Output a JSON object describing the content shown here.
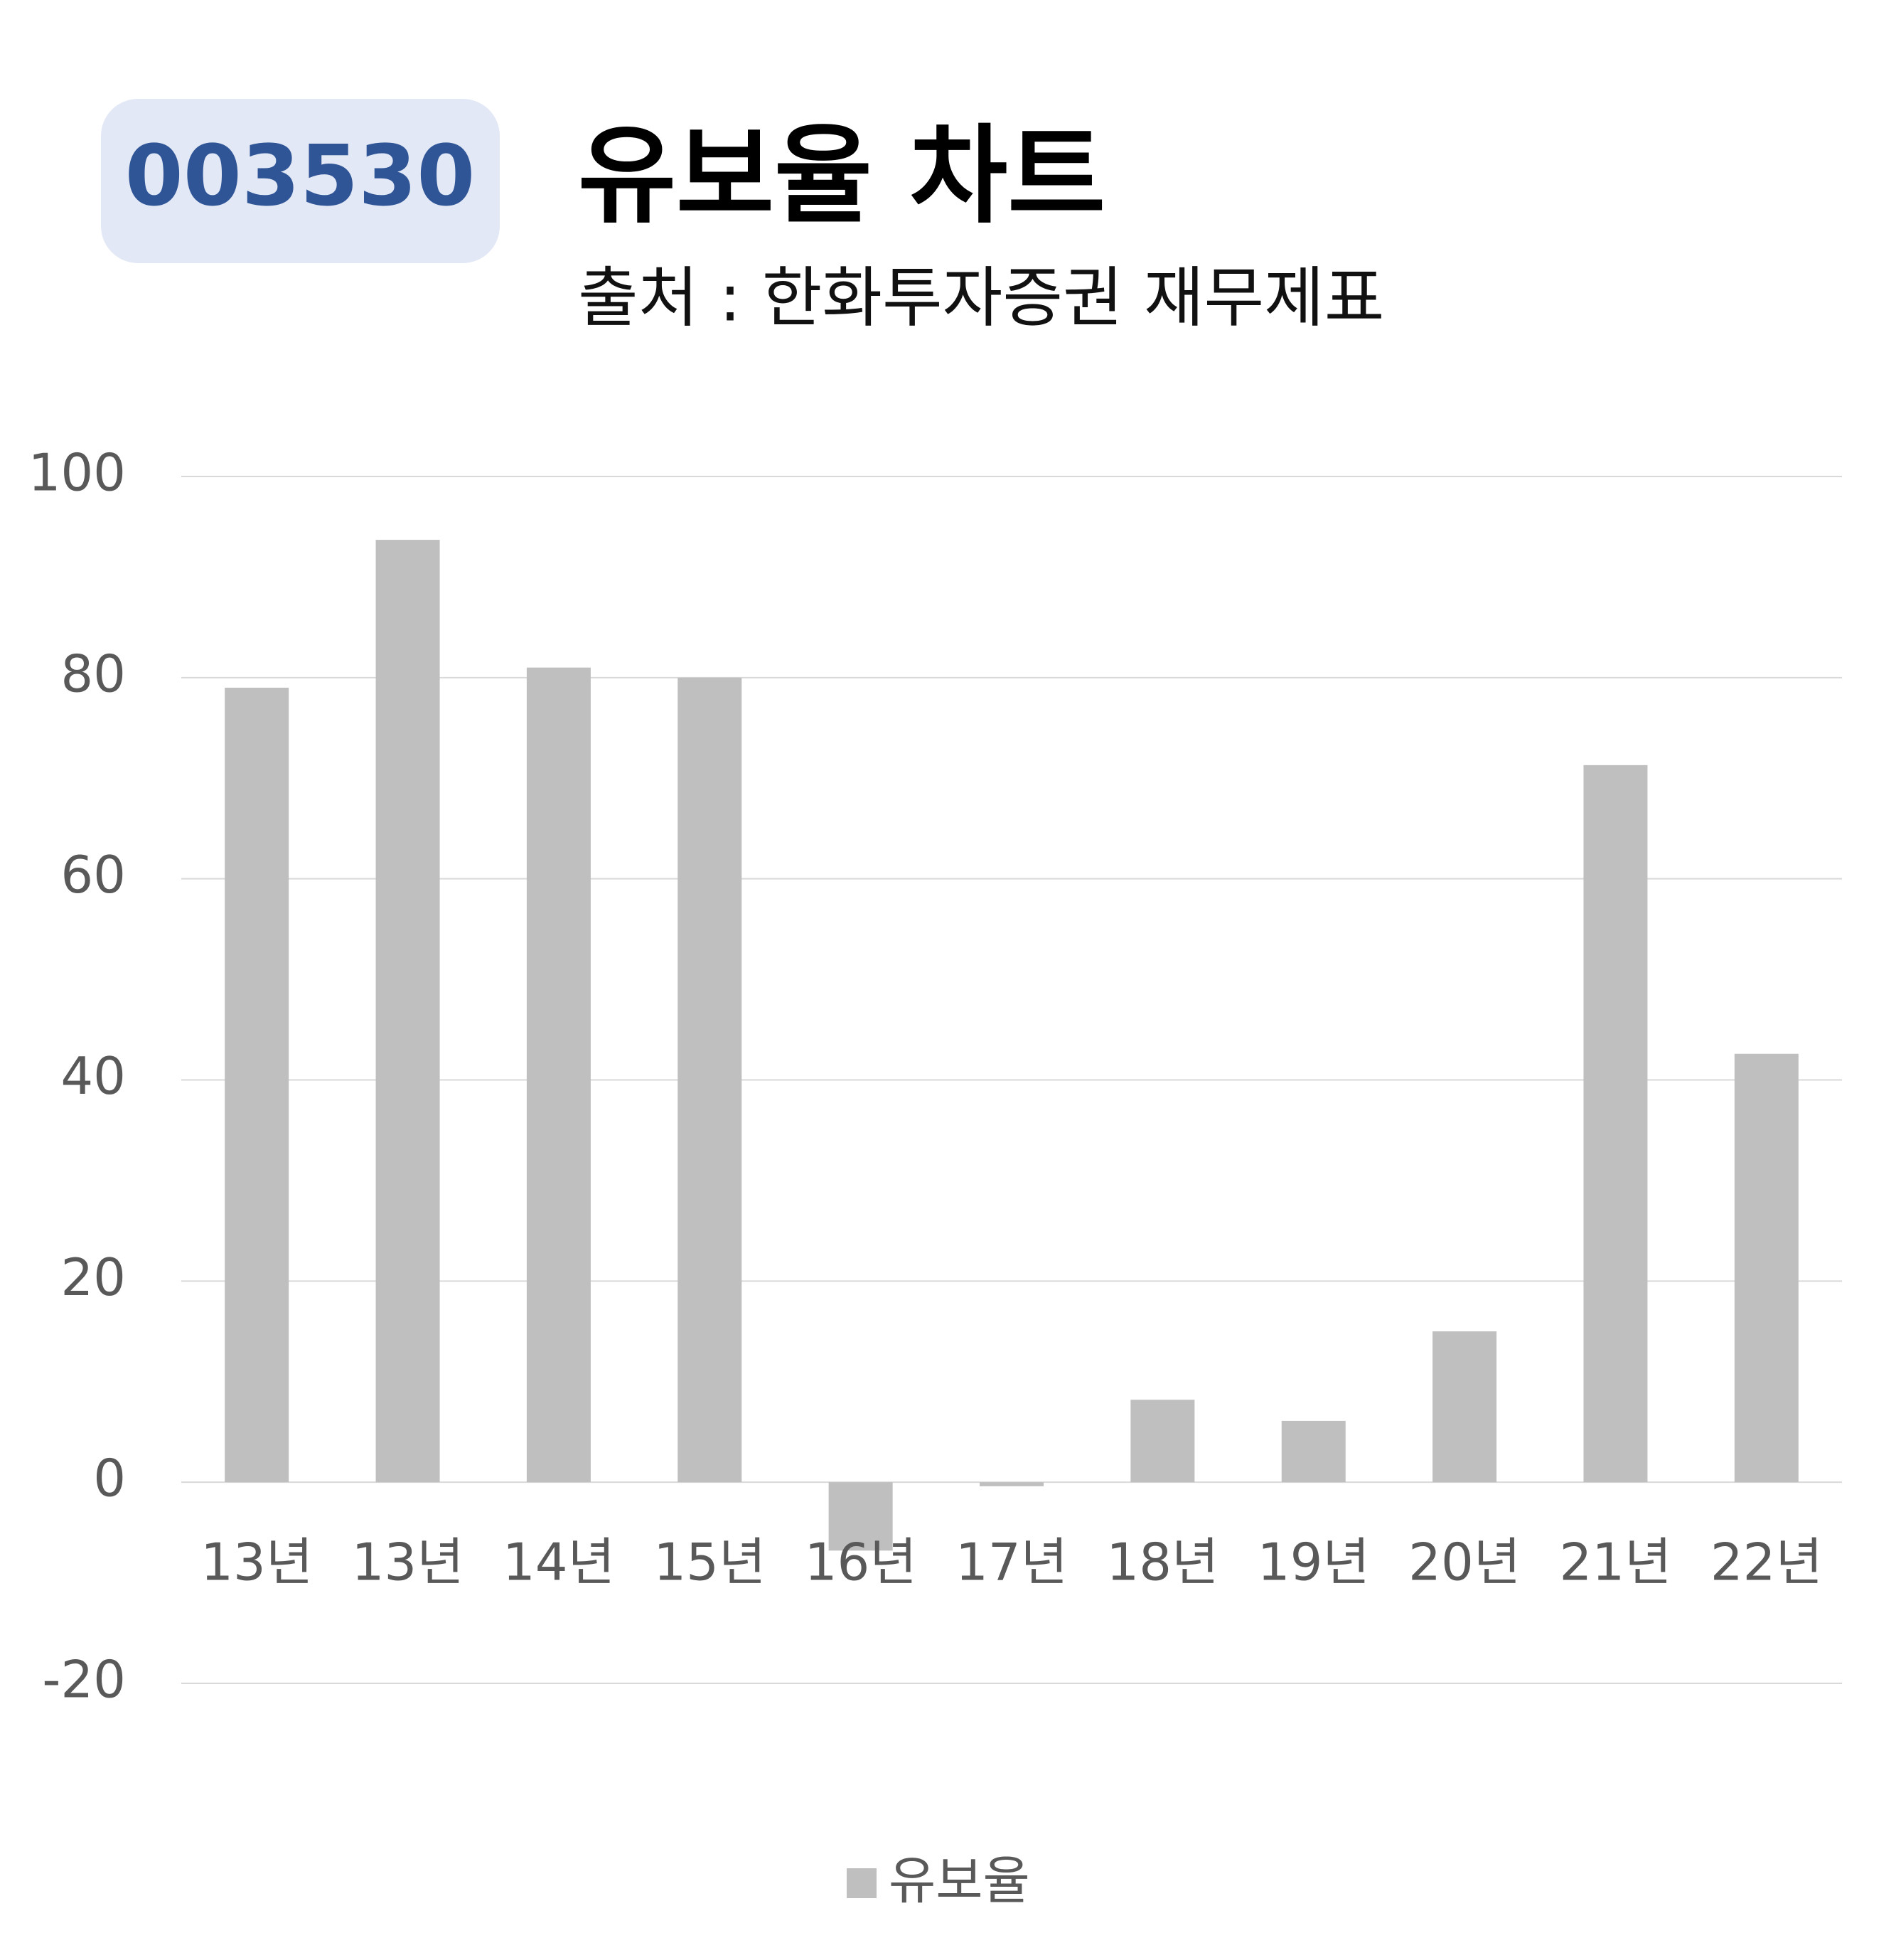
{
  "chart_data": {
    "type": "bar",
    "code": "003530",
    "title": "유보율 차트",
    "subtitle": "출처 : 한화투자증권 재무제표",
    "categories": [
      "13년",
      "13년",
      "14년",
      "15년",
      "16년",
      "17년",
      "18년",
      "19년",
      "20년",
      "21년",
      "22년"
    ],
    "series": [
      {
        "name": "유보율",
        "color": "#bfbfbf",
        "values": [
          79,
          93.7,
          81,
          80,
          -6.8,
          -0.4,
          8.2,
          6.1,
          15,
          71.3,
          42.6
        ]
      }
    ],
    "ylim": [
      -20,
      100
    ],
    "yticks": [
      -20,
      0,
      20,
      40,
      60,
      80,
      100
    ],
    "grid": true,
    "legend": "bottom"
  }
}
